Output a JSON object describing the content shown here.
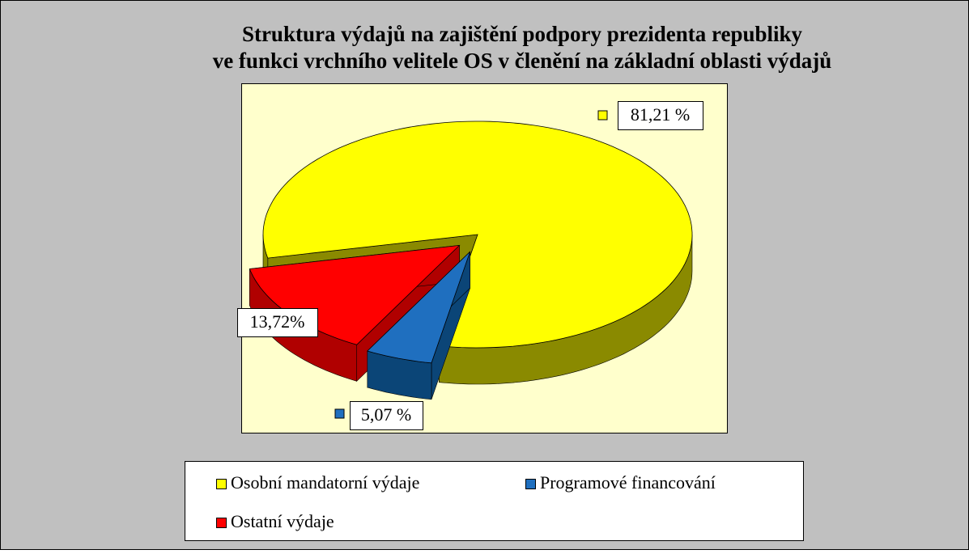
{
  "chart_data": {
    "type": "pie3d",
    "title": [
      "Struktura výdajů na zajištění podpory prezidenta republiky",
      "ve funkci vrchního velitele OS v členění na základní oblasti výdajů"
    ],
    "categories": [
      "Osobní mandatorní výdaje",
      "Programové financování",
      "Ostatní výdaje"
    ],
    "values": [
      81.21,
      5.07,
      13.72
    ],
    "value_labels": [
      "81,21 %",
      "5,07 %",
      "13,72%"
    ],
    "colors": [
      "#ffff00",
      "#1f6fbf",
      "#ff0000"
    ],
    "side_colors": [
      "#8a8a00",
      "#0b4577",
      "#b00000"
    ],
    "legend": "bottom"
  }
}
